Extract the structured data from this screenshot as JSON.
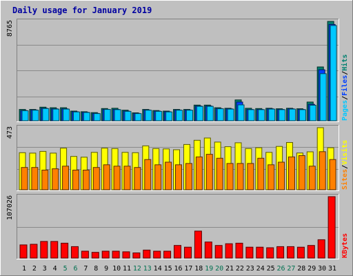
{
  "title": "Daily usage for January 2019",
  "colors": {
    "background": "#c0c0c0",
    "panel": "#bfbfbf",
    "title": "#0000a0",
    "axis_text": "#000000",
    "weekend": "#007050",
    "hits": "#008070",
    "files": "#0040ff",
    "pages": "#00c8ff",
    "visits": "#ffff00",
    "sites": "#ff8000",
    "kbytes": "#ff0000"
  },
  "chart_data": [
    {
      "type": "bar",
      "name": "hits-files-pages",
      "categories": [
        "1",
        "2",
        "3",
        "4",
        "5",
        "6",
        "7",
        "8",
        "9",
        "10",
        "11",
        "12",
        "13",
        "14",
        "15",
        "16",
        "17",
        "18",
        "19",
        "20",
        "21",
        "22",
        "23",
        "24",
        "25",
        "26",
        "27",
        "28",
        "29",
        "30",
        "31"
      ],
      "weekend_categories": [
        "5",
        "6",
        "12",
        "13",
        "19",
        "20",
        "26",
        "27"
      ],
      "ylim": [
        0,
        8765
      ],
      "max_label": "8765",
      "series": [
        {
          "name": "Hits",
          "values": [
            1000,
            1000,
            1200,
            1150,
            1150,
            850,
            800,
            720,
            1080,
            1100,
            930,
            700,
            1000,
            900,
            850,
            1000,
            1000,
            1380,
            1380,
            1150,
            1100,
            1840,
            1100,
            1080,
            1100,
            1060,
            1100,
            1060,
            1650,
            4750,
            8765
          ]
        },
        {
          "name": "Files",
          "values": [
            900,
            950,
            1100,
            1050,
            1050,
            800,
            750,
            650,
            1000,
            1000,
            850,
            650,
            950,
            850,
            800,
            950,
            950,
            1300,
            1300,
            1080,
            1050,
            1650,
            1000,
            1000,
            1050,
            1000,
            1050,
            1000,
            1450,
            4500,
            8500
          ]
        },
        {
          "name": "Pages",
          "values": [
            880,
            930,
            1080,
            1030,
            1030,
            780,
            730,
            630,
            1000,
            980,
            830,
            630,
            930,
            830,
            780,
            930,
            930,
            1270,
            1270,
            1060,
            1030,
            1400,
            980,
            980,
            1030,
            980,
            1030,
            980,
            1370,
            4150,
            8400
          ]
        }
      ]
    },
    {
      "type": "bar",
      "name": "visits-sites",
      "categories": [
        "1",
        "2",
        "3",
        "4",
        "5",
        "6",
        "7",
        "8",
        "9",
        "10",
        "11",
        "12",
        "13",
        "14",
        "15",
        "16",
        "17",
        "18",
        "19",
        "20",
        "21",
        "22",
        "23",
        "24",
        "25",
        "26",
        "27",
        "28",
        "29",
        "30",
        "31"
      ],
      "ylim": [
        0,
        473
      ],
      "max_label": "473",
      "series": [
        {
          "name": "Visits",
          "values": [
            282,
            279,
            292,
            279,
            317,
            254,
            248,
            285,
            317,
            314,
            285,
            282,
            334,
            314,
            311,
            305,
            345,
            377,
            394,
            363,
            328,
            358,
            314,
            320,
            285,
            330,
            360,
            280,
            289,
            473,
            320
          ]
        },
        {
          "name": "Sites",
          "values": [
            170,
            170,
            150,
            160,
            180,
            150,
            150,
            170,
            190,
            180,
            180,
            170,
            230,
            190,
            210,
            190,
            200,
            250,
            270,
            240,
            200,
            200,
            200,
            240,
            190,
            210,
            250,
            260,
            180,
            290,
            230
          ]
        }
      ]
    },
    {
      "type": "bar",
      "name": "kbytes",
      "categories": [
        "1",
        "2",
        "3",
        "4",
        "5",
        "6",
        "7",
        "8",
        "9",
        "10",
        "11",
        "12",
        "13",
        "14",
        "15",
        "16",
        "17",
        "18",
        "19",
        "20",
        "21",
        "22",
        "23",
        "24",
        "25",
        "26",
        "27",
        "28",
        "29",
        "30",
        "31"
      ],
      "ylim": [
        0,
        107026
      ],
      "max_label": "107026",
      "series": [
        {
          "name": "KBytes",
          "values": [
            23000,
            24000,
            29000,
            29000,
            26000,
            20000,
            12000,
            10000,
            12000,
            12000,
            11000,
            9000,
            14000,
            12000,
            12000,
            22000,
            19000,
            47000,
            28000,
            22000,
            25000,
            26000,
            19000,
            19000,
            18000,
            20000,
            20000,
            19000,
            22000,
            32000,
            107026
          ]
        }
      ]
    }
  ]
}
